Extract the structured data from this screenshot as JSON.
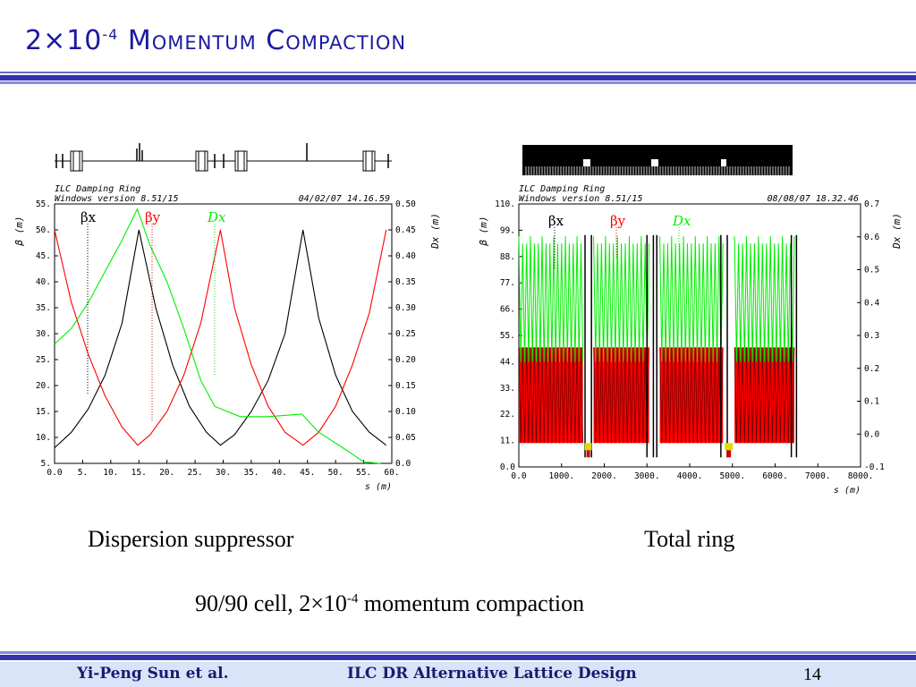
{
  "slide": {
    "title_base": "2×10",
    "title_exp": "-4",
    "title_rest": " Momentum Compaction",
    "caption_left": "Dispersion suppressor",
    "caption_right": "Total ring",
    "subtitle_a": "90/90 cell, 2×10",
    "subtitle_exp": "-4",
    "subtitle_b": " momentum compaction",
    "footer_author": "Yi-Peng Sun et al.",
    "footer_title": "ILC DR Alternative Lattice Design",
    "page_number": "14"
  },
  "colors": {
    "beta_x": "#000000",
    "beta_y": "#ff0000",
    "dispersion": "#00ee00",
    "title": "#1a1aa0"
  },
  "chart_data": [
    {
      "type": "line",
      "header_line1": "ILC Damping Ring",
      "header_line2": "Windows version 8.51/15",
      "timestamp": "04/02/07  14.16.59",
      "xlabel": "s (m)",
      "ylabel_left": "β (m)",
      "ylabel_right": "Dx (m)",
      "xlim": [
        0,
        60
      ],
      "ylim_left": [
        5,
        55
      ],
      "ylim_right": [
        0,
        0.5
      ],
      "xticks": [
        "0.0",
        "5.",
        "10.",
        "15.",
        "20.",
        "25.",
        "30.",
        "35.",
        "40.",
        "45.",
        "50.",
        "55.",
        "60."
      ],
      "yticks_left": [
        "5.",
        "10.",
        "15.",
        "20.",
        "25.",
        "30.",
        "35.",
        "40.",
        "45.",
        "50.",
        "55."
      ],
      "yticks_right": [
        "0.0",
        "0.05",
        "0.10",
        "0.15",
        "0.20",
        "0.25",
        "0.30",
        "0.35",
        "0.40",
        "0.45",
        "0.50"
      ],
      "legend": [
        "βx",
        "βy",
        "Dx"
      ],
      "series": [
        {
          "name": "βx",
          "axis": "left",
          "x": [
            0,
            3,
            6,
            9,
            12,
            15,
            18,
            21,
            24,
            27,
            29.5,
            32,
            35,
            38,
            41,
            44.2,
            47,
            50,
            53,
            56,
            59
          ],
          "y": [
            8,
            11,
            15.5,
            22,
            32,
            50,
            35,
            24,
            16,
            11,
            8.5,
            10.5,
            15,
            21,
            30,
            50,
            33,
            22,
            15,
            11,
            8.5
          ]
        },
        {
          "name": "βy",
          "axis": "left",
          "x": [
            0,
            3,
            6,
            9,
            12,
            14.8,
            17,
            20,
            23,
            26,
            29.5,
            32,
            35,
            38,
            41,
            44.2,
            47,
            50,
            53,
            56,
            59
          ],
          "y": [
            50,
            36,
            26,
            18,
            12,
            8.5,
            10.5,
            15,
            22,
            32,
            50,
            35,
            24,
            16,
            11,
            8.5,
            11,
            16,
            24,
            34,
            50
          ]
        },
        {
          "name": "Dx",
          "axis": "right",
          "x": [
            0,
            3,
            6,
            9,
            12,
            14.7,
            17,
            20,
            23,
            26,
            28.5,
            33,
            38,
            44,
            47,
            52,
            55,
            58
          ],
          "y": [
            0.23,
            0.26,
            0.31,
            0.37,
            0.43,
            0.49,
            0.42,
            0.35,
            0.26,
            0.16,
            0.11,
            0.09,
            0.09,
            0.095,
            0.06,
            0.025,
            0.003,
            0.0
          ]
        }
      ]
    },
    {
      "type": "line",
      "header_line1": "ILC Damping Ring",
      "header_line2": "Windows version 8.51/15",
      "timestamp": "08/08/07  18.32.46",
      "xlabel": "s (m)",
      "ylabel_left": "β (m)",
      "ylabel_right": "Dx (m)",
      "xlim": [
        0,
        8000
      ],
      "ylim_left": [
        0,
        110
      ],
      "ylim_right": [
        -0.1,
        0.7
      ],
      "xticks": [
        "0.0",
        "1000.",
        "2000.",
        "3000.",
        "4000.",
        "5000.",
        "6000.",
        "7000.",
        "8000."
      ],
      "yticks_left": [
        "0.0",
        "11.",
        "22.",
        "33.",
        "44.",
        "55.",
        "66.",
        "77.",
        "88.",
        "99.",
        "110."
      ],
      "yticks_right": [
        "-0.1",
        "0.0",
        "0.1",
        "0.2",
        "0.3",
        "0.4",
        "0.5",
        "0.6",
        "0.7"
      ],
      "legend": [
        "βx",
        "βy",
        "Dx"
      ],
      "arc_segments": [
        [
          0,
          1500
        ],
        [
          1750,
          3050
        ],
        [
          3300,
          4780
        ],
        [
          5050,
          6450
        ]
      ],
      "beta_range_in_arcs": [
        10,
        50
      ],
      "dispersion_range_in_arcs": [
        0.0,
        0.58
      ],
      "beta_peak_near_straights": 97,
      "series": [
        {
          "name": "βx",
          "axis": "left",
          "x": [
            0,
            1500,
            1750,
            3050,
            3300,
            4780,
            5050,
            6450
          ],
          "y": [
            48,
            48,
            48,
            48,
            48,
            48,
            48,
            48
          ]
        },
        {
          "name": "βy",
          "axis": "left",
          "x": [
            0,
            1500,
            1750,
            3050,
            3300,
            4780,
            5050,
            6450
          ],
          "y": [
            10,
            10,
            10,
            10,
            10,
            10,
            10,
            10
          ]
        },
        {
          "name": "Dx",
          "axis": "right",
          "x": [
            0,
            1500,
            1750,
            3050,
            3300,
            4780,
            5050,
            6450
          ],
          "y": [
            0.58,
            0.58,
            0.58,
            0.58,
            0.58,
            0.58,
            0.58,
            0.58
          ]
        }
      ]
    }
  ]
}
